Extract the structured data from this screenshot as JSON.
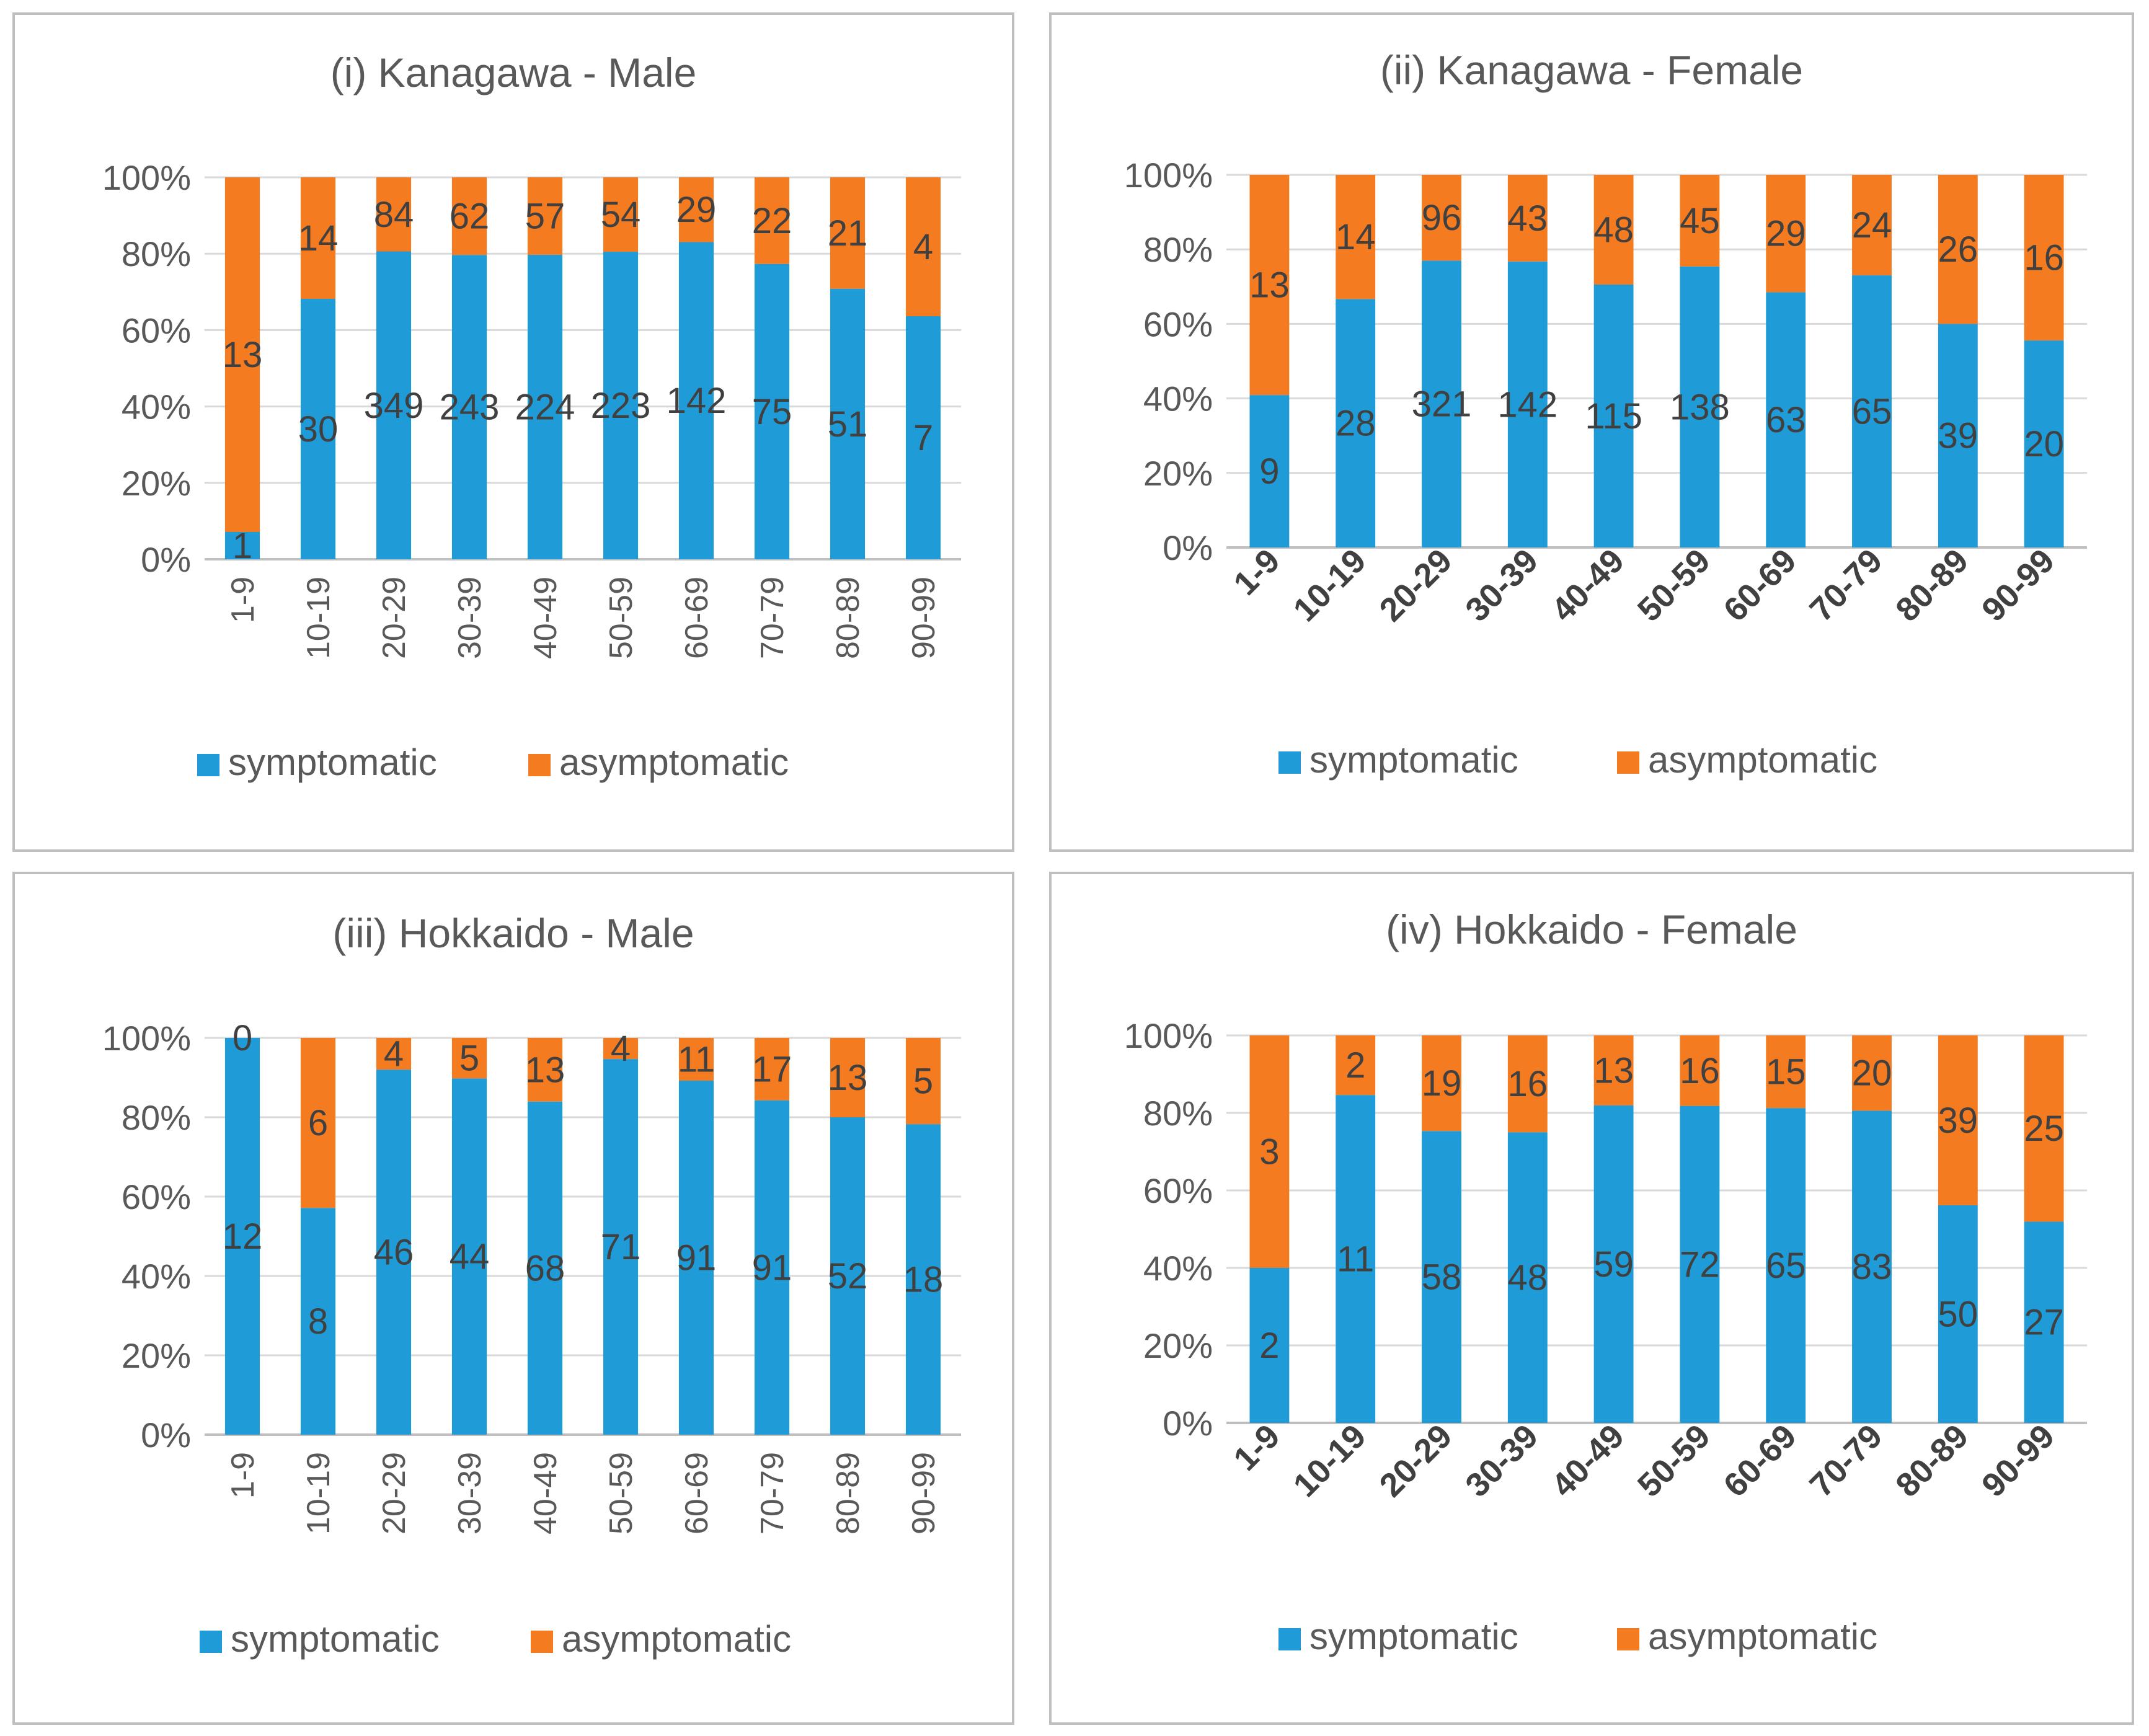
{
  "colors": {
    "symptomatic": "#1f9bd7",
    "asymptomatic": "#f47b20"
  },
  "chart_data": [
    {
      "type": "bar",
      "stacked": "percent",
      "title": "(i) Kanagawa - Male",
      "categories": [
        "1-9",
        "10-19",
        "20-29",
        "30-39",
        "40-49",
        "50-59",
        "60-69",
        "70-79",
        "80-89",
        "90-99"
      ],
      "yticks": [
        "0%",
        "20%",
        "40%",
        "60%",
        "80%",
        "100%"
      ],
      "ylim": [
        0,
        100
      ],
      "series": [
        {
          "name": "symptomatic",
          "values": [
            1,
            30,
            349,
            243,
            224,
            223,
            142,
            75,
            51,
            7
          ]
        },
        {
          "name": "asymptomatic",
          "values": [
            13,
            14,
            84,
            62,
            57,
            54,
            29,
            22,
            21,
            4
          ]
        }
      ],
      "legend": [
        "symptomatic",
        "asymptomatic"
      ]
    },
    {
      "type": "bar",
      "stacked": "percent",
      "title": "(ii) Kanagawa - Female",
      "categories": [
        "1-9",
        "10-19",
        "20-29",
        "30-39",
        "40-49",
        "50-59",
        "60-69",
        "70-79",
        "80-89",
        "90-99"
      ],
      "yticks": [
        "0%",
        "20%",
        "40%",
        "60%",
        "80%",
        "100%"
      ],
      "ylim": [
        0,
        100
      ],
      "series": [
        {
          "name": "symptomatic",
          "values": [
            9,
            28,
            321,
            142,
            115,
            138,
            63,
            65,
            39,
            20
          ]
        },
        {
          "name": "asymptomatic",
          "values": [
            13,
            14,
            96,
            43,
            48,
            45,
            29,
            24,
            26,
            16
          ]
        }
      ],
      "legend": [
        "symptomatic",
        "asymptomatic"
      ]
    },
    {
      "type": "bar",
      "stacked": "percent",
      "title": "(iii) Hokkaido - Male",
      "categories": [
        "1-9",
        "10-19",
        "20-29",
        "30-39",
        "40-49",
        "50-59",
        "60-69",
        "70-79",
        "80-89",
        "90-99"
      ],
      "yticks": [
        "0%",
        "20%",
        "40%",
        "60%",
        "80%",
        "100%"
      ],
      "ylim": [
        0,
        100
      ],
      "series": [
        {
          "name": "symptomatic",
          "values": [
            12,
            8,
            46,
            44,
            68,
            71,
            91,
            91,
            52,
            18
          ]
        },
        {
          "name": "asymptomatic",
          "values": [
            0,
            6,
            4,
            5,
            13,
            4,
            11,
            17,
            13,
            5
          ]
        }
      ],
      "legend": [
        "symptomatic",
        "asymptomatic"
      ]
    },
    {
      "type": "bar",
      "stacked": "percent",
      "title": "(iv) Hokkaido - Female",
      "categories": [
        "1-9",
        "10-19",
        "20-29",
        "30-39",
        "40-49",
        "50-59",
        "60-69",
        "70-79",
        "80-89",
        "90-99"
      ],
      "yticks": [
        "0%",
        "20%",
        "40%",
        "60%",
        "80%",
        "100%"
      ],
      "ylim": [
        0,
        100
      ],
      "series": [
        {
          "name": "symptomatic",
          "values": [
            2,
            11,
            58,
            48,
            59,
            72,
            65,
            83,
            50,
            27
          ]
        },
        {
          "name": "asymptomatic",
          "values": [
            3,
            2,
            19,
            16,
            13,
            16,
            15,
            20,
            39,
            25
          ]
        }
      ],
      "legend": [
        "symptomatic",
        "asymptomatic"
      ]
    }
  ]
}
